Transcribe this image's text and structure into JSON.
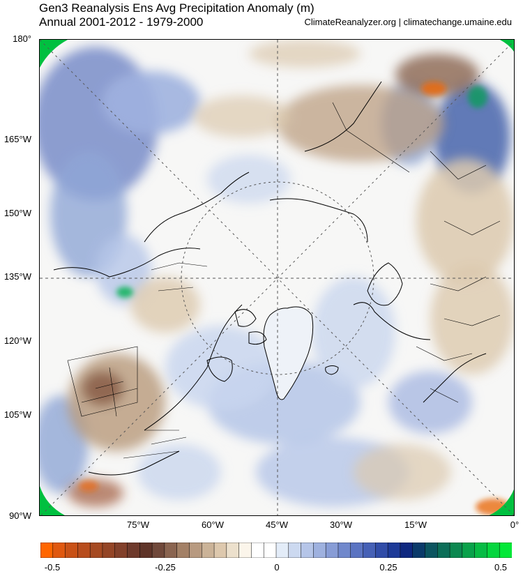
{
  "header": {
    "title": "Gen3 Reanalysis Ens Avg Precipitation Anomaly (m)",
    "subtitle": "Annual 2001-2012 - 1979-2000",
    "credit": "ClimateReanalyzer.org | climatechange.umaine.edu"
  },
  "map": {
    "projection": "north-polar-stereographic",
    "lat_labels": [
      "180°",
      "165°W",
      "150°W",
      "135°W",
      "120°W",
      "105°W",
      "90°W"
    ],
    "lon_labels": [
      "75°W",
      "60°W",
      "45°W",
      "30°W",
      "15°W",
      "0°"
    ],
    "colors": {
      "ocean_neutral": "#f7f7f6",
      "wet_light": "#c9d6ee",
      "wet_mid": "#8fa6d6",
      "wet_dark": "#3b4f9c",
      "wet_extreme": "#00b050",
      "dry_light": "#dcc9ae",
      "dry_mid": "#b8987a",
      "dry_dark": "#7a4a34",
      "dry_extreme": "#e86a10",
      "coast": "#000000"
    }
  },
  "colorbar": {
    "tick_labels": [
      "-0.5",
      "-0.25",
      "0",
      "0.25",
      "0.5"
    ],
    "colors": [
      "#ff6600",
      "#e0580f",
      "#c95116",
      "#b84d1d",
      "#a64a22",
      "#944526",
      "#82402a",
      "#6e3a2c",
      "#5f3428",
      "#70483a",
      "#8a6450",
      "#a38066",
      "#b89a80",
      "#cbb398",
      "#ddc8ad",
      "#ece0cc",
      "#fbf5ea",
      "#ffffff",
      "#ffffff",
      "#e3ecf8",
      "#ccd9f0",
      "#b5c5e8",
      "#9eb1df",
      "#879cd6",
      "#7088cc",
      "#5a73c2",
      "#4560b6",
      "#304ca8",
      "#1d3a98",
      "#0e2880",
      "#0a3a6a",
      "#0b5560",
      "#0b6e58",
      "#0b8850",
      "#08a24a",
      "#06bc44",
      "#04d63e",
      "#03e838"
    ]
  }
}
